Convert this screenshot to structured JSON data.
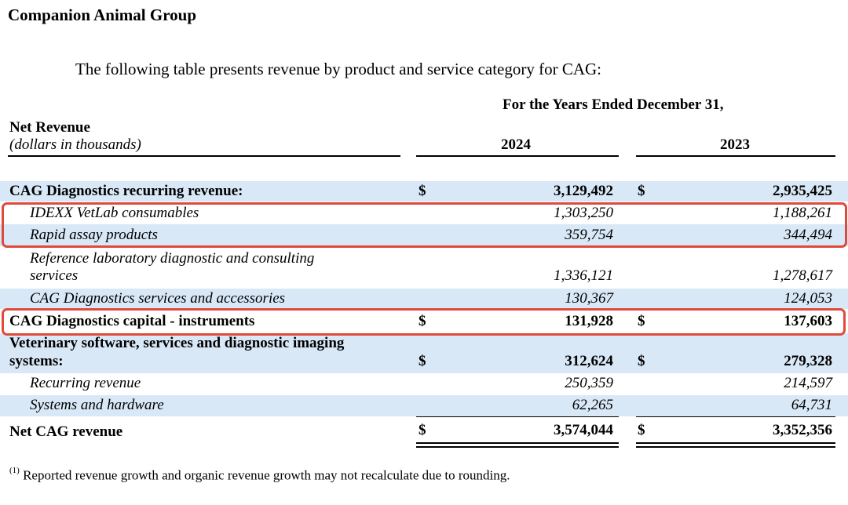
{
  "section_title": "Companion Animal Group",
  "intro_text": "The following table presents revenue by product and service category for CAG:",
  "period_header": "For the Years Ended December 31,",
  "column_label": "Net Revenue",
  "units_label": "(dollars in thousands)",
  "years": [
    "2024",
    "2023"
  ],
  "currency_symbol": "$",
  "rows": [
    {
      "label": "CAG Diagnostics recurring revenue:",
      "v2024": "3,129,492",
      "v2023": "2,935,425"
    },
    {
      "label": "IDEXX VetLab consumables",
      "v2024": "1,303,250",
      "v2023": "1,188,261"
    },
    {
      "label": "Rapid assay products",
      "v2024": "359,754",
      "v2023": "344,494"
    },
    {
      "label_line1": "Reference laboratory diagnostic and consulting",
      "label_line2": "services",
      "v2024": "1,336,121",
      "v2023": "1,278,617"
    },
    {
      "label": "CAG Diagnostics services and accessories",
      "v2024": "130,367",
      "v2023": "124,053"
    },
    {
      "label": "CAG Diagnostics capital - instruments",
      "v2024": "131,928",
      "v2023": "137,603"
    },
    {
      "label_line1": "Veterinary software, services and diagnostic imaging",
      "label_line2": "systems:",
      "v2024": "312,624",
      "v2023": "279,328"
    },
    {
      "label": "Recurring revenue",
      "v2024": "250,359",
      "v2023": "214,597"
    },
    {
      "label": "Systems and hardware",
      "v2024": "62,265",
      "v2023": "64,731"
    },
    {
      "label": "Net CAG revenue",
      "v2024": "3,574,044",
      "v2023": "3,352,356"
    }
  ],
  "footnote_marker": "(1)",
  "footnote_text": "Reported revenue growth and organic revenue growth may not recalculate due to rounding.",
  "highlight_color": "#e04a3b",
  "shade_color": "#d9e8f7"
}
